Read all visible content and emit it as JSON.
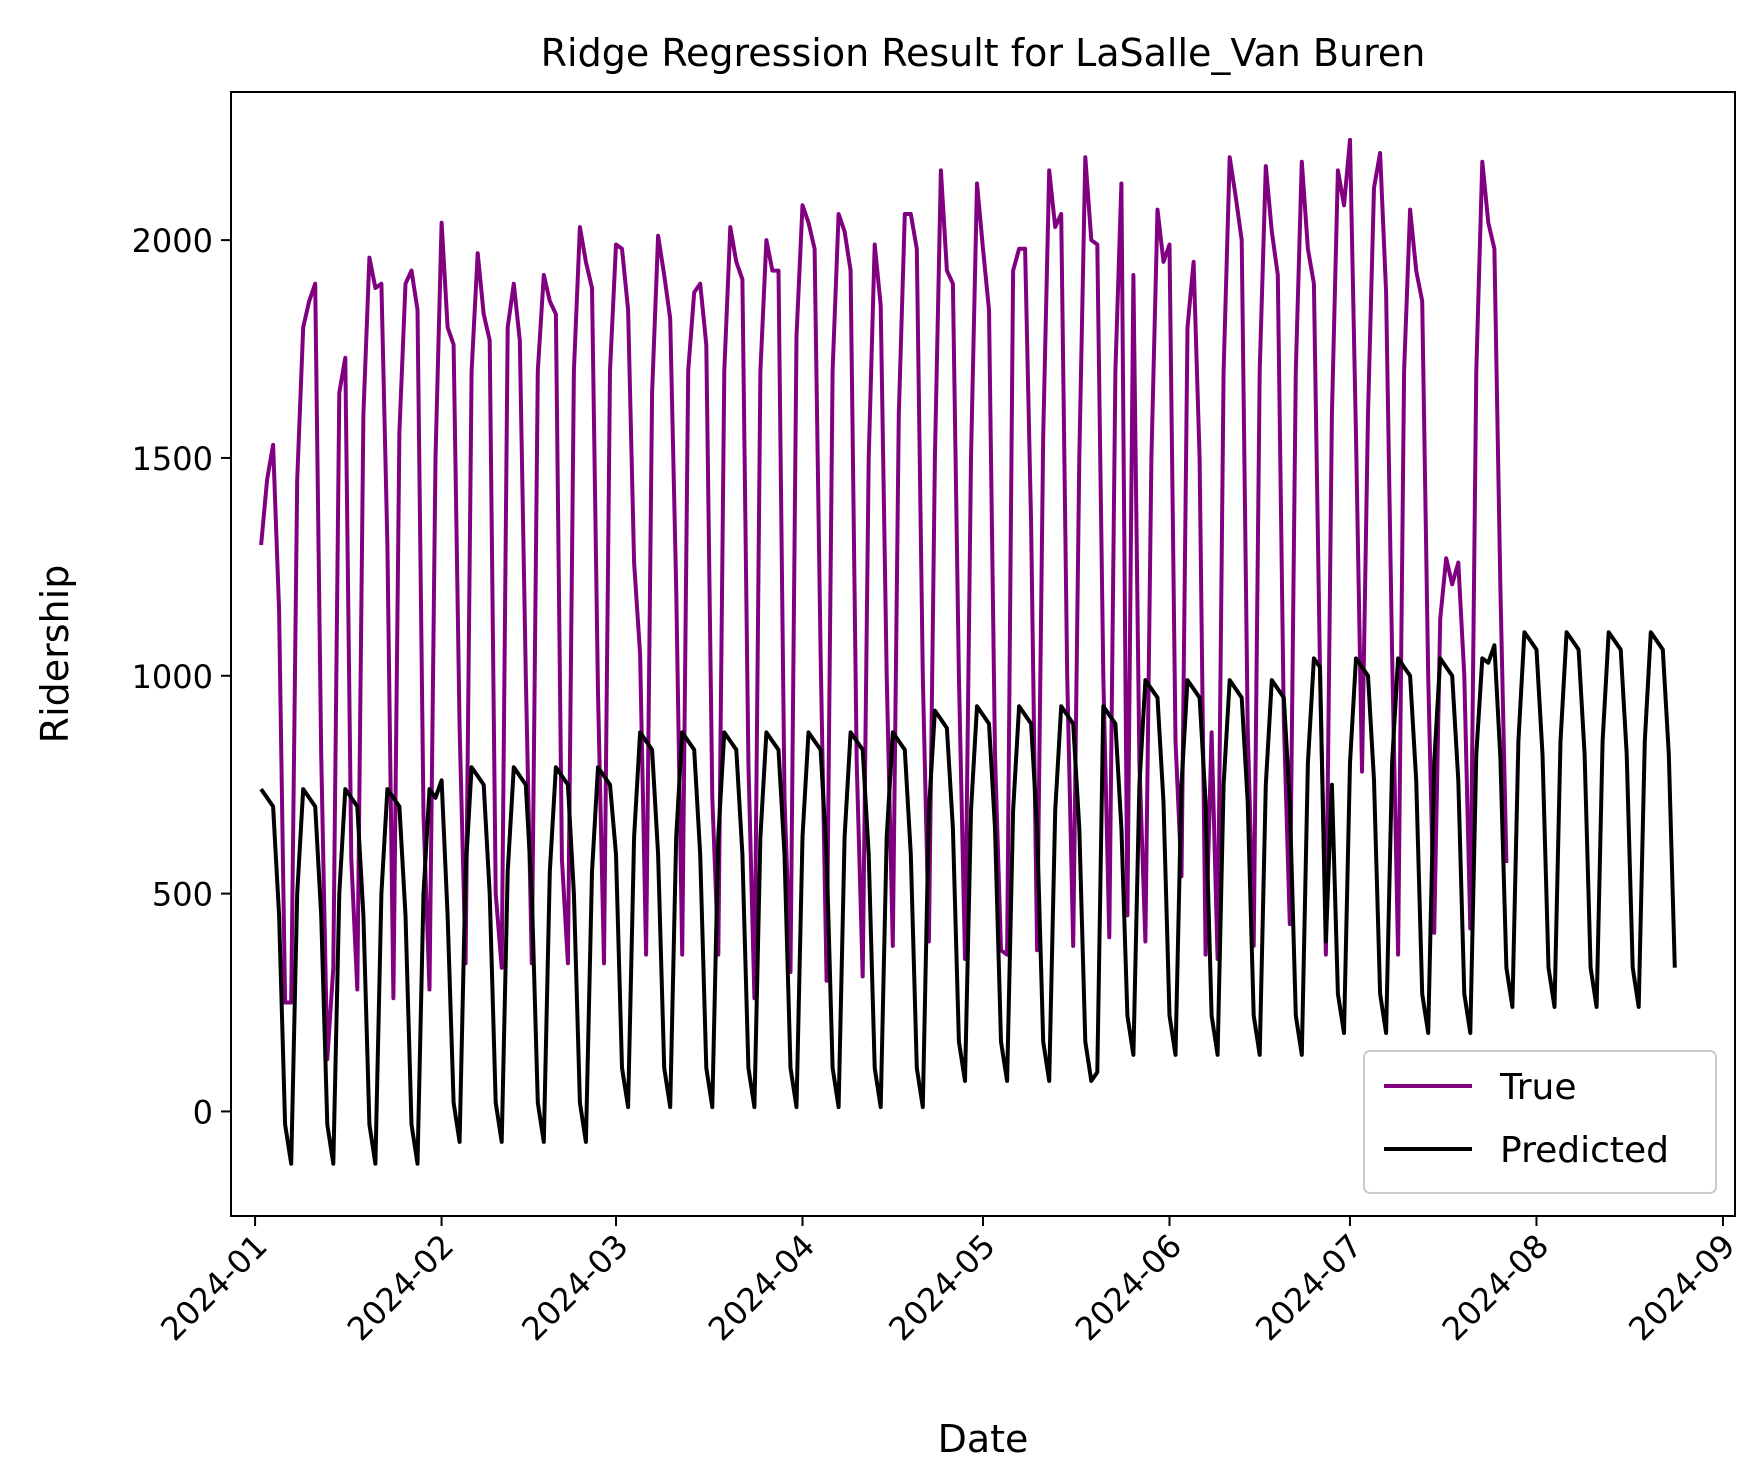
{
  "chart_data": {
    "type": "line",
    "title": "Ridge Regression Result for LaSalle_Van Buren",
    "xlabel": "Date",
    "ylabel": "Ridership",
    "xlim": [
      "2023-12-28",
      "2024-09-03"
    ],
    "ylim": [
      -240,
      2340
    ],
    "x_ticks": [
      "2024-01",
      "2024-02",
      "2024-03",
      "2024-04",
      "2024-05",
      "2024-06",
      "2024-07",
      "2024-08",
      "2024-09"
    ],
    "y_ticks": [
      0,
      500,
      1000,
      1500,
      2000
    ],
    "legend": {
      "position": "bottom-right"
    },
    "start_date": "2024-01-02",
    "series": [
      {
        "name": "True",
        "color": "#800080",
        "values": [
          1300,
          1450,
          1530,
          1150,
          250,
          250,
          1450,
          1800,
          1860,
          1900,
          820,
          120,
          330,
          1650,
          1730,
          580,
          280,
          1600,
          1960,
          1890,
          1900,
          1300,
          260,
          1560,
          1900,
          1930,
          1840,
          680,
          280,
          1500,
          2040,
          1800,
          1760,
          880,
          340,
          1700,
          1970,
          1830,
          1770,
          500,
          330,
          1800,
          1900,
          1770,
          1000,
          340,
          1700,
          1920,
          1860,
          1830,
          580,
          340,
          1700,
          2030,
          1950,
          1890,
          960,
          340,
          1700,
          1990,
          1980,
          1840,
          1260,
          1050,
          360,
          1650,
          2010,
          1920,
          1820,
          1200,
          360,
          1700,
          1880,
          1900,
          1760,
          720,
          360,
          1700,
          2030,
          1950,
          1910,
          800,
          260,
          1700,
          2000,
          1930,
          1930,
          720,
          320,
          1780,
          2080,
          2040,
          1980,
          1050,
          300,
          1700,
          2060,
          2020,
          1930,
          800,
          310,
          1500,
          1990,
          1850,
          1000,
          380,
          1600,
          2060,
          2060,
          1980,
          1000,
          390,
          1500,
          2160,
          1930,
          1900,
          1000,
          350,
          1500,
          2130,
          1980,
          1840,
          820,
          370,
          360,
          1930,
          1980,
          1980,
          1350,
          370,
          1550,
          2160,
          2030,
          2060,
          1000,
          380,
          1500,
          2190,
          2000,
          1990,
          1000,
          400,
          1700,
          2130,
          450,
          1920,
          800,
          390,
          1500,
          2070,
          1950,
          1990,
          850,
          540,
          1800,
          1950,
          1500,
          360,
          870,
          350,
          1700,
          2190,
          2100,
          2000,
          880,
          380,
          1700,
          2170,
          2020,
          1920,
          900,
          430,
          1700,
          2180,
          1980,
          1900,
          1030,
          360,
          1600,
          2160,
          2080,
          2230,
          1550,
          780,
          1600,
          2120,
          2200,
          1880,
          1050,
          360,
          1700,
          2070,
          1930,
          1860,
          1000,
          410,
          1130,
          1270,
          1210,
          1260,
          1000,
          420,
          1700,
          2180,
          2040,
          1980,
          1200,
          570
        ]
      },
      {
        "name": "Predicted",
        "color": "#000000",
        "values": [
          740,
          720,
          700,
          450,
          -30,
          -120,
          500,
          740,
          720,
          700,
          450,
          -30,
          -120,
          500,
          740,
          720,
          700,
          450,
          -30,
          -120,
          500,
          740,
          720,
          700,
          450,
          -30,
          -120,
          500,
          740,
          720,
          760,
          450,
          20,
          -70,
          550,
          790,
          770,
          750,
          500,
          20,
          -70,
          550,
          790,
          770,
          750,
          500,
          20,
          -70,
          550,
          790,
          770,
          750,
          500,
          20,
          -70,
          550,
          790,
          770,
          750,
          590,
          100,
          10,
          630,
          870,
          850,
          830,
          590,
          100,
          10,
          630,
          870,
          850,
          830,
          590,
          100,
          10,
          630,
          870,
          850,
          830,
          590,
          100,
          10,
          630,
          870,
          850,
          830,
          590,
          100,
          10,
          630,
          870,
          850,
          830,
          590,
          100,
          10,
          630,
          870,
          850,
          830,
          590,
          100,
          10,
          630,
          870,
          850,
          830,
          590,
          100,
          10,
          690,
          920,
          900,
          880,
          650,
          160,
          70,
          690,
          930,
          910,
          890,
          650,
          160,
          70,
          690,
          930,
          910,
          890,
          650,
          160,
          70,
          690,
          930,
          910,
          890,
          650,
          160,
          70,
          90,
          930,
          910,
          890,
          650,
          220,
          130,
          750,
          990,
          970,
          950,
          710,
          220,
          130,
          750,
          990,
          970,
          950,
          710,
          220,
          130,
          750,
          990,
          970,
          950,
          710,
          220,
          130,
          750,
          990,
          970,
          950,
          710,
          220,
          130,
          800,
          1040,
          1020,
          390,
          750,
          270,
          180,
          800,
          1040,
          1020,
          1000,
          760,
          270,
          180,
          800,
          1040,
          1020,
          1000,
          760,
          270,
          180,
          800,
          1040,
          1020,
          1000,
          760,
          270,
          180,
          820,
          1040,
          1030,
          1070,
          810,
          330,
          240,
          850,
          1100,
          1080,
          1060,
          820,
          330,
          240,
          850,
          1100,
          1080,
          1060,
          820,
          330,
          240,
          850,
          1100,
          1080,
          1060,
          820,
          330,
          240,
          850,
          1100,
          1080,
          1060,
          820,
          330
        ]
      }
    ]
  }
}
